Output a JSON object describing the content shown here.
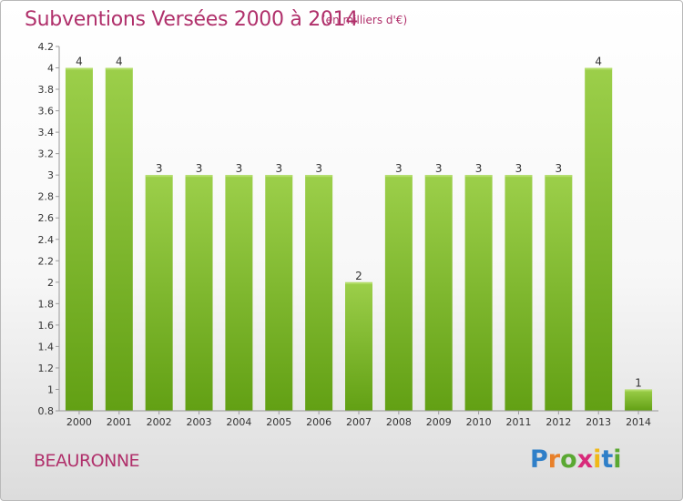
{
  "title": "Subventions Versées 2000 à 2014",
  "subtitle": "(en milliers d'€)",
  "commune": "BEAURONNE",
  "logo": {
    "text": "Proxiti",
    "letters": [
      "P",
      "r",
      "o",
      "x",
      "i",
      "t",
      "i"
    ],
    "colors": [
      "#2f7fc8",
      "#e8802a",
      "#5aa832",
      "#d82a7a",
      "#f0b818",
      "#2f7fc8",
      "#5aa832"
    ]
  },
  "chart_data": {
    "type": "bar",
    "title": "Subventions Versées 2000 à 2014",
    "subtitle": "(en milliers d'€)",
    "categories": [
      "2000",
      "2001",
      "2002",
      "2003",
      "2004",
      "2005",
      "2006",
      "2007",
      "2008",
      "2009",
      "2010",
      "2011",
      "2012",
      "2013",
      "2014"
    ],
    "values": [
      4,
      4,
      3,
      3,
      3,
      3,
      3,
      2,
      3,
      3,
      3,
      3,
      3,
      4,
      1
    ],
    "data_labels": [
      "4",
      "4",
      "3",
      "3",
      "3",
      "3",
      "3",
      "2",
      "3",
      "3",
      "3",
      "3",
      "3",
      "4",
      "1"
    ],
    "ylim": [
      0.8,
      4.2
    ],
    "y_ticks": [
      0.8,
      1,
      1.2,
      1.4,
      1.6,
      1.8,
      2,
      2.2,
      2.4,
      2.6,
      2.8,
      3,
      3.2,
      3.4,
      3.6,
      3.8,
      4,
      4.2
    ],
    "y_tick_labels": [
      "0.8",
      "1",
      "1.2",
      "1.4",
      "1.6",
      "1.8",
      "2",
      "2.2",
      "2.4",
      "2.6",
      "2.8",
      "3",
      "3.2",
      "3.4",
      "3.6",
      "3.8",
      "4",
      "4.2"
    ],
    "grid": false,
    "legend": "none",
    "bar_color_top": "#9ccf4a",
    "bar_color_bottom": "#62a014"
  }
}
